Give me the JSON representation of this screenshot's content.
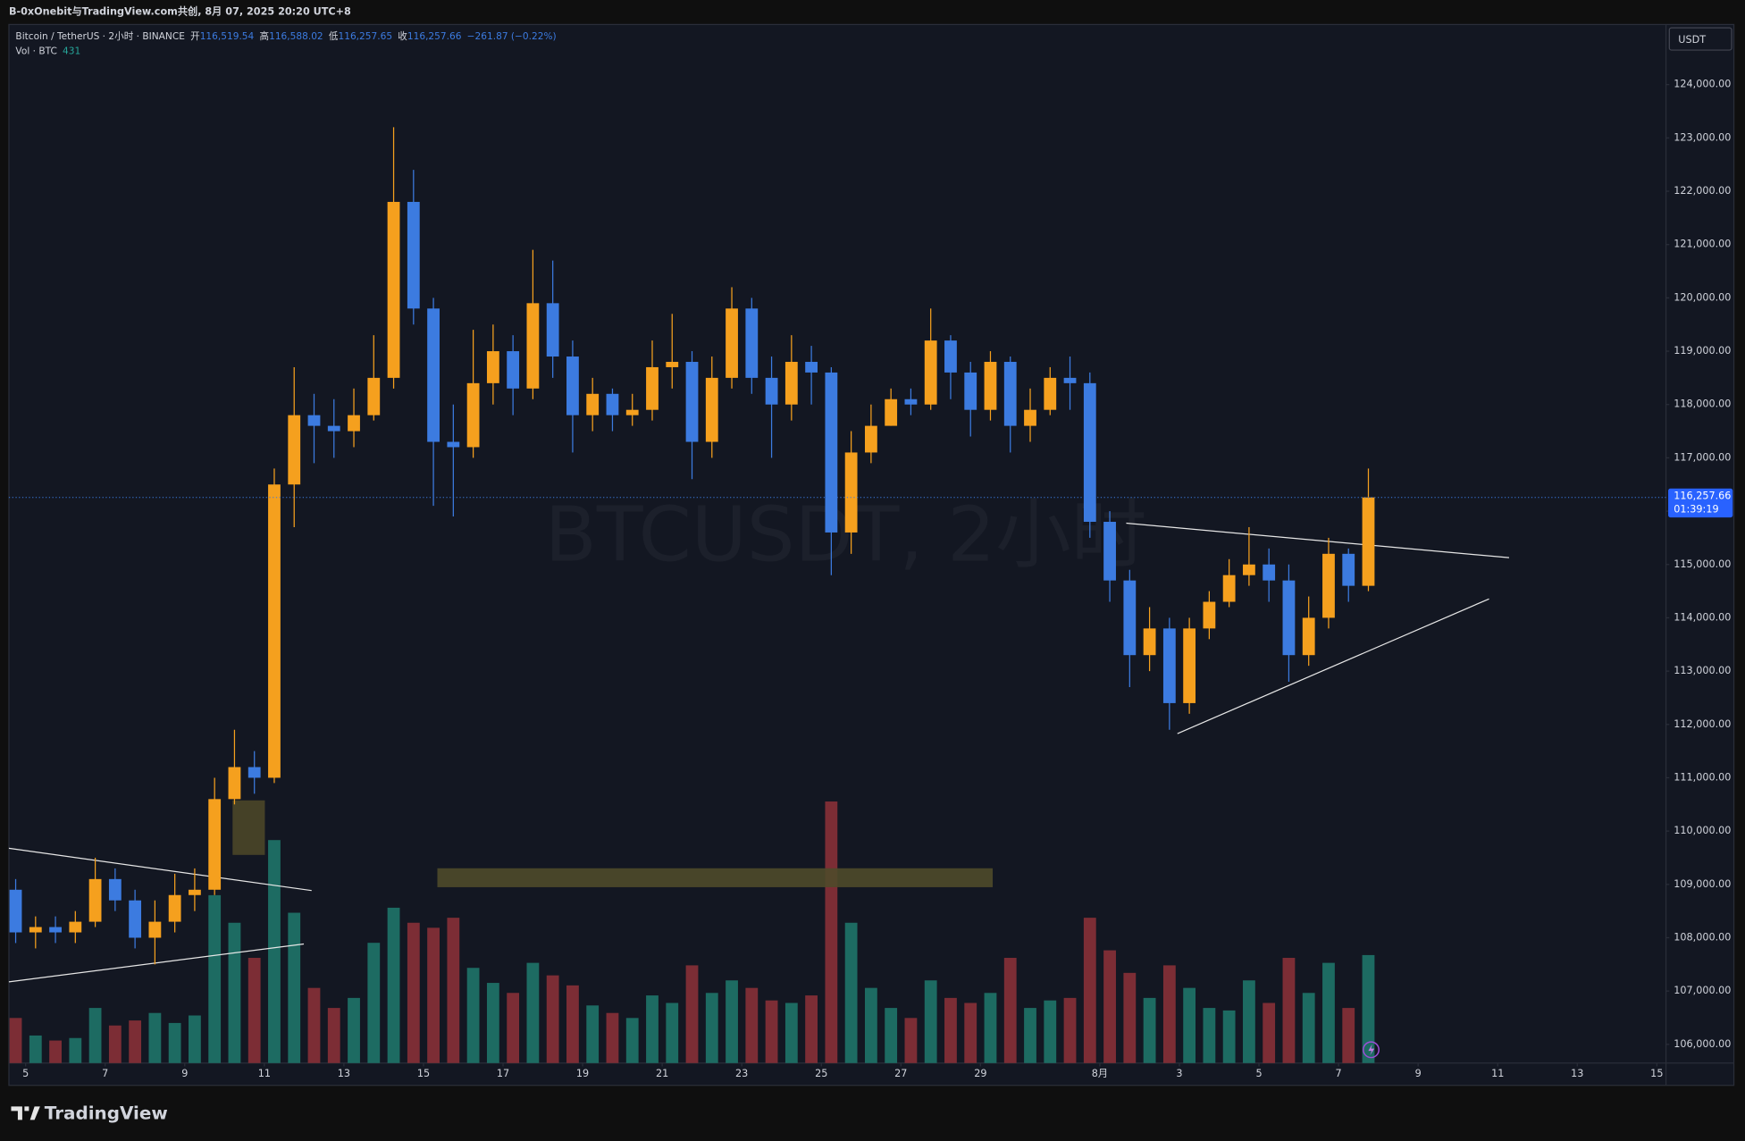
{
  "attribution": "B-0xOnebit与TradingView.com共创, 8月 07, 2025 20:20 UTC+8",
  "brand": "TradingView",
  "chart_data": {
    "type": "candlestick",
    "symbol": "Bitcoin / TetherUS · 2小时 · BINANCE",
    "readout": [
      {
        "label": "开",
        "value": "116,519.54"
      },
      {
        "label": "高",
        "value": "116,588.02"
      },
      {
        "label": "低",
        "value": "116,257.65"
      },
      {
        "label": "收",
        "value": "116,257.66"
      }
    ],
    "change": "−261.87 (−0.22%)",
    "watermark": "BTCUSDT, 2小时",
    "currency": "USDT",
    "last_price_label": "116,257.66",
    "countdown": "01:39:19",
    "up_color": "#f5a01e",
    "down_color": "#3c7be0",
    "x": [
      -0.25,
      0.25,
      0.75,
      1.25,
      1.75,
      2.25,
      2.75,
      3.25,
      3.75,
      4.25,
      4.75,
      5.25,
      5.75,
      6.25,
      6.75,
      7.25,
      7.75,
      8.25,
      8.75,
      9.25,
      9.75,
      10.25,
      10.75,
      11.25,
      11.75,
      12.25,
      12.75,
      13.25,
      13.75,
      14.25,
      14.75,
      15.25,
      15.75,
      16.25,
      16.75,
      17.25,
      17.75,
      18.25,
      18.75,
      19.25,
      19.75,
      20.25,
      20.75,
      21.25,
      21.75,
      22.25,
      22.75,
      23.25,
      23.75,
      24.25,
      24.75,
      25.25,
      25.75,
      26.25,
      26.75,
      27.25,
      27.75,
      28.25,
      28.75,
      29.25,
      29.75,
      30.25,
      30.75,
      31.25,
      31.75,
      32.25,
      32.75,
      33.25,
      33.75
    ],
    "open": [
      108900,
      108100,
      108200,
      108100,
      108300,
      109100,
      108700,
      108000,
      108300,
      108800,
      108900,
      110600,
      111200,
      111000,
      116500,
      117800,
      117600,
      117500,
      117800,
      118500,
      121800,
      119800,
      117300,
      117200,
      118400,
      119000,
      118300,
      119900,
      118900,
      117800,
      118200,
      117800,
      117900,
      118700,
      118800,
      117300,
      118500,
      119800,
      118500,
      118000,
      118800,
      118600,
      115600,
      117100,
      117600,
      118100,
      118000,
      119200,
      118600,
      117900,
      118800,
      117600,
      117900,
      118500,
      118400,
      115800,
      114700,
      113300,
      113800,
      112400,
      113800,
      114300,
      114800,
      115000,
      114700,
      113300,
      114000,
      115200,
      114600
    ],
    "high": [
      109100,
      108400,
      108400,
      108500,
      109500,
      109300,
      108900,
      108700,
      109200,
      109300,
      111000,
      111900,
      111500,
      116800,
      118700,
      118200,
      118100,
      118300,
      119300,
      123200,
      122400,
      120000,
      118000,
      119400,
      119500,
      119300,
      120900,
      120700,
      119200,
      118500,
      118300,
      118200,
      119200,
      119700,
      119000,
      118900,
      120200,
      120000,
      118900,
      119300,
      119100,
      118700,
      117500,
      118000,
      118300,
      118300,
      119800,
      119300,
      118800,
      119000,
      118900,
      118300,
      118700,
      118900,
      118600,
      116000,
      114900,
      114200,
      114000,
      114000,
      114500,
      115100,
      115700,
      115300,
      115000,
      114400,
      115500,
      115300,
      116800
    ],
    "low": [
      107900,
      107800,
      107900,
      107900,
      108200,
      108500,
      107800,
      107500,
      108100,
      108500,
      108800,
      110500,
      110700,
      110900,
      115700,
      116900,
      117000,
      117200,
      117700,
      118300,
      119500,
      116100,
      115900,
      117000,
      118000,
      117800,
      118100,
      118500,
      117100,
      117500,
      117500,
      117600,
      117700,
      118300,
      116600,
      117000,
      118300,
      118200,
      117000,
      117700,
      118000,
      114800,
      115200,
      116900,
      117600,
      117800,
      117900,
      118100,
      117400,
      117700,
      117100,
      117300,
      117800,
      117900,
      115500,
      114300,
      112700,
      113000,
      111900,
      112200,
      113600,
      114200,
      114600,
      114300,
      112800,
      113100,
      113800,
      114300,
      114500
    ],
    "close": [
      108100,
      108200,
      108100,
      108300,
      109100,
      108700,
      108000,
      108300,
      108800,
      108900,
      110600,
      111200,
      111000,
      116500,
      117800,
      117600,
      117500,
      117800,
      118500,
      121800,
      119800,
      117300,
      117200,
      118400,
      119000,
      118300,
      119900,
      118900,
      117800,
      118200,
      117800,
      117900,
      118700,
      118800,
      117300,
      118500,
      119800,
      118500,
      118000,
      118800,
      118600,
      115600,
      117100,
      117600,
      118100,
      118000,
      119200,
      118600,
      117900,
      118800,
      117600,
      117900,
      118500,
      118400,
      115800,
      114700,
      113300,
      113800,
      112400,
      113800,
      114300,
      114800,
      115000,
      114700,
      113300,
      114000,
      115200,
      114600,
      116257.66
    ],
    "volume": {
      "label": "Vol · BTC",
      "up_color": "#1d6b62",
      "down_color": "#7c2d35",
      "values": [
        180,
        110,
        90,
        100,
        220,
        150,
        170,
        200,
        160,
        190,
        670,
        560,
        420,
        890,
        600,
        300,
        220,
        260,
        480,
        620,
        560,
        540,
        580,
        380,
        320,
        280,
        400,
        350,
        310,
        230,
        200,
        180,
        270,
        240,
        390,
        280,
        330,
        300,
        250,
        240,
        270,
        1044,
        560,
        300,
        220,
        180,
        330,
        260,
        240,
        280,
        420,
        220,
        250,
        260,
        580,
        450,
        360,
        260,
        390,
        300,
        220,
        210,
        330,
        240,
        420,
        280,
        400,
        220,
        431
      ]
    },
    "xlim": [
      -0.42,
      41.23
    ],
    "ylim": [
      105649,
      125127
    ],
    "xticks": [
      {
        "value": 0,
        "label": "5"
      },
      {
        "value": 2,
        "label": "7"
      },
      {
        "value": 4,
        "label": "9"
      },
      {
        "value": 6,
        "label": "11"
      },
      {
        "value": 8,
        "label": "13"
      },
      {
        "value": 10,
        "label": "15"
      },
      {
        "value": 12,
        "label": "17"
      },
      {
        "value": 14,
        "label": "19"
      },
      {
        "value": 16,
        "label": "21"
      },
      {
        "value": 18,
        "label": "23"
      },
      {
        "value": 20,
        "label": "25"
      },
      {
        "value": 22,
        "label": "27"
      },
      {
        "value": 24,
        "label": "29"
      },
      {
        "value": 27,
        "label": "8月"
      },
      {
        "value": 29,
        "label": "3"
      },
      {
        "value": 31,
        "label": "5"
      },
      {
        "value": 33,
        "label": "7"
      },
      {
        "value": 35,
        "label": "9"
      },
      {
        "value": 37,
        "label": "11"
      },
      {
        "value": 39,
        "label": "13"
      },
      {
        "value": 41,
        "label": "15"
      }
    ],
    "yticks": [
      {
        "value": 106000,
        "label": "106,000.00"
      },
      {
        "value": 107000,
        "label": "107,000.00"
      },
      {
        "value": 108000,
        "label": "108,000.00"
      },
      {
        "value": 109000,
        "label": "109,000.00"
      },
      {
        "value": 110000,
        "label": "110,000.00"
      },
      {
        "value": 111000,
        "label": "111,000.00"
      },
      {
        "value": 112000,
        "label": "112,000.00"
      },
      {
        "value": 113000,
        "label": "113,000.00"
      },
      {
        "value": 114000,
        "label": "114,000.00"
      },
      {
        "value": 115000,
        "label": "115,000.00"
      },
      {
        "value": 116000,
        "label": "116,000.00"
      },
      {
        "value": 117000,
        "label": "117,000.00"
      },
      {
        "value": 118000,
        "label": "118,000.00"
      },
      {
        "value": 119000,
        "label": "119,000.00"
      },
      {
        "value": 120000,
        "label": "120,000.00"
      },
      {
        "value": 121000,
        "label": "121,000.00"
      },
      {
        "value": 122000,
        "label": "122,000.00"
      },
      {
        "value": 123000,
        "label": "123,000.00"
      },
      {
        "value": 124000,
        "label": "124,000.00"
      }
    ]
  }
}
